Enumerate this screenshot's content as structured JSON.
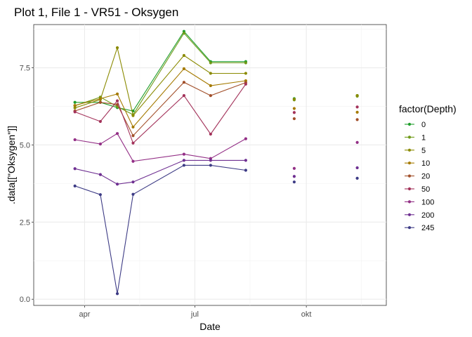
{
  "chart_data": {
    "type": "line",
    "title": "Plot 1, File 1 - VR51  -  Oksygen",
    "xlabel": "Date",
    "ylabel": ".data[[\"Oksygen\"]]",
    "x_ticks": [
      {
        "label": "apr",
        "date": "2021-04-01"
      },
      {
        "label": "jul",
        "date": "2021-07-01"
      },
      {
        "label": "okt",
        "date": "2021-10-01"
      }
    ],
    "y_ticks": [
      0.0,
      2.5,
      5.0,
      7.5
    ],
    "y_tick_labels": [
      "0.0",
      "2.5",
      "5.0",
      "7.5"
    ],
    "xlim": [
      "2021-02-18",
      "2021-12-06"
    ],
    "ylim": [
      -0.2,
      8.9
    ],
    "grid": true,
    "legend_title": "factor(Depth)",
    "legend_position": "right",
    "dates": [
      "2021-03-24",
      "2021-04-14",
      "2021-04-28",
      "2021-05-11",
      "2021-06-22",
      "2021-07-14",
      "2021-08-12",
      "2021-09-21",
      "2021-11-12"
    ],
    "series": [
      {
        "name": "0",
        "color": "#1f9e2c",
        "values": [
          6.38,
          6.38,
          6.21,
          6.1,
          8.68,
          7.7,
          7.7,
          6.5,
          6.6
        ]
      },
      {
        "name": "1",
        "color": "#6f9a18",
        "values": [
          6.27,
          6.55,
          6.24,
          5.98,
          8.62,
          7.66,
          7.66,
          6.46,
          6.58
        ]
      },
      {
        "name": "5",
        "color": "#8a8a00",
        "values": [
          6.2,
          6.47,
          8.15,
          5.95,
          7.9,
          7.32,
          7.32,
          6.48,
          6.6
        ]
      },
      {
        "name": "10",
        "color": "#a57a00",
        "values": [
          6.28,
          6.5,
          6.65,
          5.58,
          7.47,
          6.92,
          7.08,
          6.18,
          6.06
        ]
      },
      {
        "name": "20",
        "color": "#a24f2a",
        "values": [
          6.1,
          6.38,
          6.31,
          5.3,
          7.03,
          6.6,
          7.02,
          5.85,
          5.82
        ]
      },
      {
        "name": "50",
        "color": "#a3325a",
        "values": [
          6.07,
          5.76,
          6.43,
          5.06,
          6.6,
          5.35,
          6.97,
          6.05,
          6.23
        ]
      },
      {
        "name": "100",
        "color": "#932f86",
        "values": [
          5.17,
          5.03,
          5.37,
          4.47,
          4.7,
          4.56,
          5.2,
          4.24,
          5.08
        ]
      },
      {
        "name": "200",
        "color": "#6e2f91",
        "values": [
          4.23,
          4.04,
          3.73,
          3.8,
          4.5,
          4.5,
          4.5,
          3.98,
          4.26
        ]
      },
      {
        "name": "245",
        "color": "#3d3b85",
        "values": [
          3.67,
          3.39,
          0.18,
          3.4,
          4.34,
          4.34,
          4.18,
          3.8,
          3.92
        ]
      }
    ],
    "lines_up_to_date": "2021-08-12"
  }
}
